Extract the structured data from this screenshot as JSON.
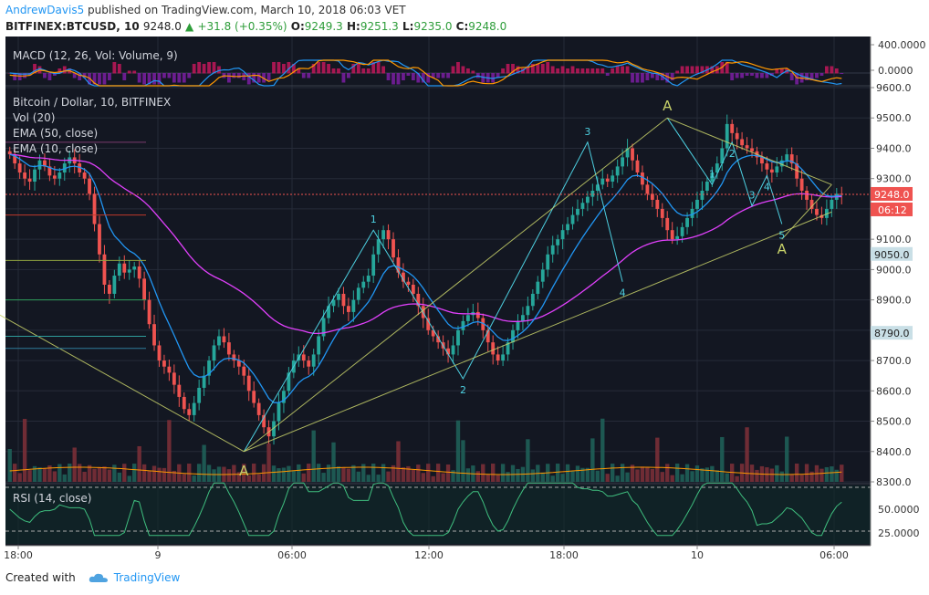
{
  "header": {
    "author": "AndrewDavis5",
    "published_text": "published on TradingView.com, March 10, 2018 06:03 VET",
    "symbol": "BITFINEX:BTCUSD, 10",
    "last": "9248.0",
    "change": "+31.8 (+0.35%)",
    "o_label": "O:",
    "o_value": "9249.3",
    "h_label": "H:",
    "h_value": "9251.3",
    "l_label": "L:",
    "l_value": "9235.0",
    "c_label": "C:",
    "c_value": "9248.0"
  },
  "footer": {
    "created_with": "Created with",
    "brand": "TradingView"
  },
  "colors": {
    "bg": "#131722",
    "up": "#26a69a",
    "down": "#ef5350",
    "ema50": "#e040fb",
    "ema10": "#2196f3",
    "pattern": "#c8d26a",
    "wave": "#4dd0e1",
    "rsi": "#3fbf7f",
    "price_line": "#ef5350"
  },
  "chart_data": [
    {
      "type": "candlestick",
      "title": "Bitcoin / Dollar, 10, BITFINEX",
      "indicators": [
        "Vol (20)",
        "EMA (50, close)",
        "EMA (10, close)"
      ],
      "ylim": [
        8300,
        9600
      ],
      "y_ticks": [
        "9600.0",
        "9500.0",
        "9400.0",
        "9300.0",
        "9200.0",
        "9100.0",
        "9000.0",
        "8900.0",
        "8800.0",
        "8700.0",
        "8600.0",
        "8500.0",
        "8400.0",
        "8300.0"
      ],
      "x_ticks": [
        "18:00",
        "9",
        "06:00",
        "12:00",
        "18:00",
        "10",
        "06:00"
      ],
      "last_price": "9248.0",
      "countdown": "06:12",
      "price_labels": [
        "9050.0",
        "8790.0"
      ],
      "close_series": [
        9380,
        9350,
        9320,
        9300,
        9290,
        9330,
        9360,
        9340,
        9310,
        9300,
        9320,
        9350,
        9370,
        9350,
        9320,
        9300,
        9250,
        9150,
        9050,
        8950,
        8920,
        8980,
        9020,
        8990,
        9000,
        9010,
        8970,
        8900,
        8820,
        8750,
        8700,
        8680,
        8660,
        8620,
        8580,
        8540,
        8520,
        8560,
        8610,
        8650,
        8700,
        8750,
        8780,
        8760,
        8720,
        8700,
        8680,
        8650,
        8600,
        8560,
        8520,
        8480,
        8450,
        8500,
        8560,
        8600,
        8660,
        8700,
        8720,
        8700,
        8680,
        8720,
        8780,
        8840,
        8880,
        8900,
        8920,
        8880,
        8860,
        8900,
        8940,
        8960,
        8980,
        9050,
        9100,
        9130,
        9100,
        9040,
        8990,
        8960,
        8950,
        8920,
        8880,
        8840,
        8800,
        8780,
        8760,
        8740,
        8720,
        8750,
        8800,
        8830,
        8850,
        8860,
        8840,
        8800,
        8760,
        8720,
        8700,
        8720,
        8760,
        8800,
        8830,
        8850,
        8880,
        8920,
        8960,
        9000,
        9050,
        9080,
        9100,
        9130,
        9150,
        9180,
        9200,
        9220,
        9240,
        9260,
        9280,
        9300,
        9290,
        9310,
        9340,
        9370,
        9400,
        9360,
        9320,
        9280,
        9250,
        9230,
        9200,
        9170,
        9130,
        9100,
        9110,
        9140,
        9170,
        9200,
        9230,
        9260,
        9290,
        9320,
        9350,
        9400,
        9480,
        9450,
        9430,
        9410,
        9400,
        9390,
        9370,
        9350,
        9330,
        9320,
        9340,
        9360,
        9380,
        9350,
        9300,
        9260,
        9230,
        9200,
        9180,
        9170,
        9200,
        9230,
        9250,
        9248
      ],
      "wave_points": [
        {
          "label": "A",
          "time_index": 47,
          "price": 8400
        },
        {
          "label": "1",
          "time_index": 73,
          "price": 9130
        },
        {
          "label": "2",
          "time_index": 91,
          "price": 8640
        },
        {
          "label": "3",
          "time_index": 116,
          "price": 9420
        },
        {
          "label": "4",
          "time_index": 123,
          "price": 8960
        },
        {
          "label": "A",
          "time_index": 132,
          "price": 9500
        },
        {
          "label": "1",
          "time_index": 141,
          "price": 9280
        },
        {
          "label": "2",
          "time_index": 145,
          "price": 9420
        },
        {
          "label": "3",
          "time_index": 149,
          "price": 9210
        },
        {
          "label": "4",
          "time_index": 152,
          "price": 9310
        },
        {
          "label": "5",
          "time_index": 155,
          "price": 9150
        },
        {
          "label": "A",
          "time_index": 155,
          "price": 9100
        }
      ]
    },
    {
      "type": "line",
      "title": "MACD (12, 26, Vol: Volume, 9)",
      "y_ticks": [
        "400.0000",
        "0.0000"
      ]
    },
    {
      "type": "line",
      "title": "RSI (14, close)",
      "y_ticks": [
        "50.0000",
        "25.0000"
      ]
    }
  ]
}
